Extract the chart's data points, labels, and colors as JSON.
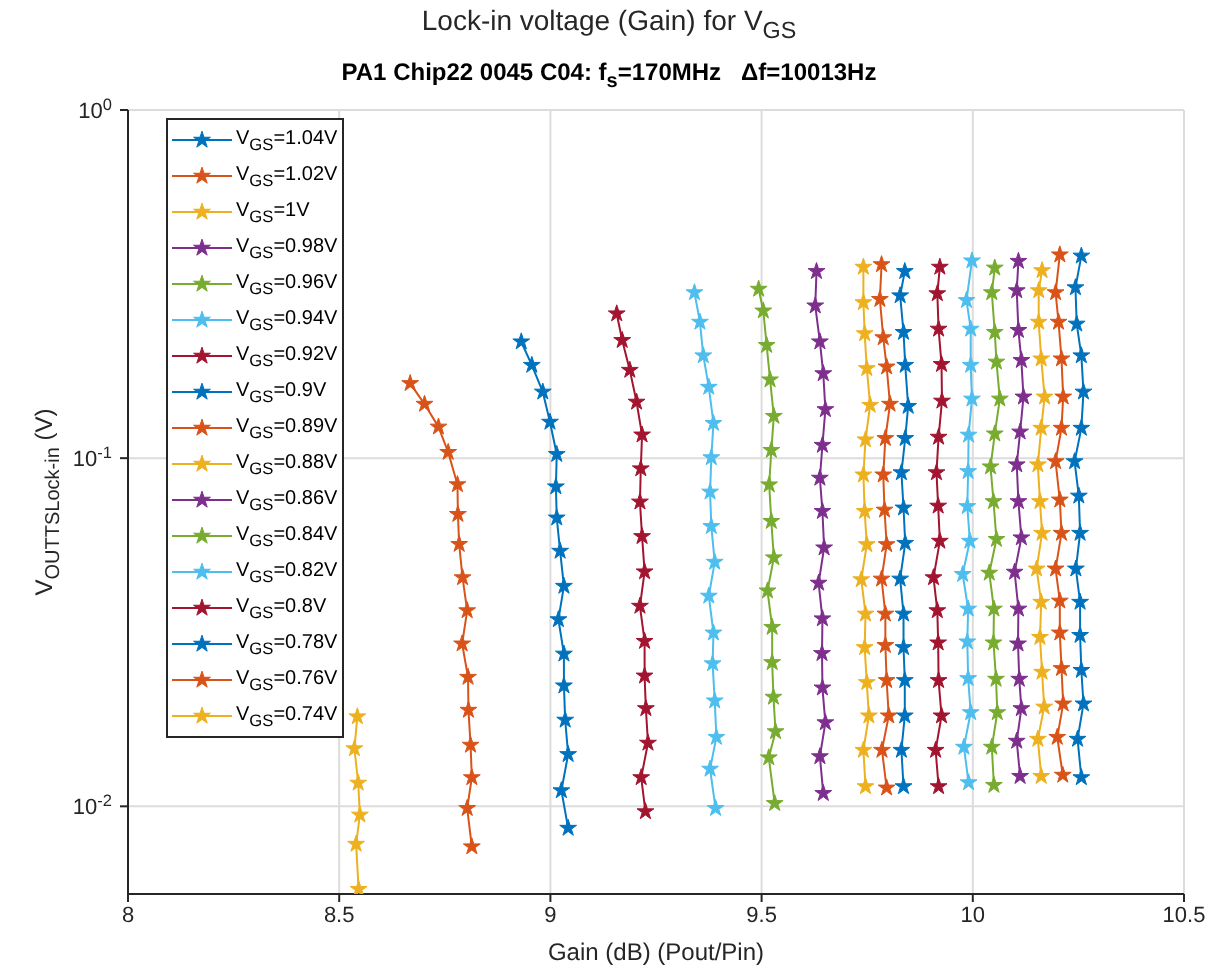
{
  "chart_data": {
    "type": "line",
    "title": "Lock-in voltage (Gain) for V$_{GS}$",
    "subtitle": "PA1 Chip22 0045 C04: f$_{s}$=170MHz   Δf=10013Hz",
    "xlabel": "Gain (dB) (Pout/Pin)",
    "ylabel": "V$_{OUT}$$_{TS}$$_{Lock-in}$ (V)",
    "log": "y",
    "xlim": [
      8,
      10.5
    ],
    "xticks": [
      8,
      8.5,
      9,
      9.5,
      10,
      10.5
    ],
    "ylim": [
      0.0056,
      1
    ],
    "yticks": [
      {
        "value": 0.01,
        "label": "10$^{-2}$"
      },
      {
        "value": 0.1,
        "label": "10$^{-1}$"
      },
      {
        "value": 1,
        "label": "10$^{0}$"
      }
    ],
    "grid": true,
    "legend": "top left",
    "marker": "star",
    "line_style": "solid",
    "series": [
      {
        "name": "V$_{GS}$=1.04V",
        "color": "#0072bd",
        "x": [
          10.257,
          10.243,
          10.246,
          10.257,
          10.262,
          10.257,
          10.241,
          10.251,
          10.254,
          10.244,
          10.254,
          10.254,
          10.257,
          10.262,
          10.248,
          10.257
        ],
        "values": [
          0.381,
          0.309,
          0.243,
          0.197,
          0.155,
          0.122,
          0.0978,
          0.0779,
          0.0609,
          0.0481,
          0.0386,
          0.031,
          0.0246,
          0.0197,
          0.0156,
          0.0121
        ]
      },
      {
        "name": "V$_{GS}$=1.02V",
        "color": "#d95319",
        "x": [
          10.206,
          10.196,
          10.203,
          10.21,
          10.214,
          10.21,
          10.196,
          10.206,
          10.21,
          10.196,
          10.206,
          10.206,
          10.21,
          10.214,
          10.2,
          10.213
        ],
        "values": [
          0.384,
          0.299,
          0.246,
          0.193,
          0.15,
          0.122,
          0.0978,
          0.0759,
          0.0609,
          0.0481,
          0.0389,
          0.0315,
          0.0249,
          0.0197,
          0.0158,
          0.0123
        ]
      },
      {
        "name": "V$_{GS}$=1V",
        "color": "#edb120",
        "x": [
          10.164,
          10.156,
          10.156,
          10.162,
          10.17,
          10.162,
          10.154,
          10.159,
          10.164,
          10.151,
          10.162,
          10.159,
          10.164,
          10.169,
          10.154,
          10.162
        ],
        "values": [
          0.346,
          0.303,
          0.246,
          0.193,
          0.15,
          0.122,
          0.0958,
          0.0751,
          0.0609,
          0.0481,
          0.0386,
          0.0306,
          0.0243,
          0.0193,
          0.0156,
          0.0122
        ]
      },
      {
        "name": "V$_{GS}$=0.98V",
        "color": "#7e2f8e",
        "x": [
          10.108,
          10.104,
          10.108,
          10.115,
          10.12,
          10.112,
          10.104,
          10.108,
          10.115,
          10.099,
          10.108,
          10.107,
          10.11,
          10.115,
          10.104,
          10.112
        ],
        "values": [
          0.368,
          0.303,
          0.233,
          0.191,
          0.15,
          0.119,
          0.0958,
          0.0751,
          0.0591,
          0.0471,
          0.0369,
          0.0293,
          0.0232,
          0.0191,
          0.0154,
          0.0122
        ]
      },
      {
        "name": "V$_{GS}$=0.96V",
        "color": "#77ac30",
        "x": [
          10.052,
          10.045,
          10.052,
          10.056,
          10.064,
          10.052,
          10.042,
          10.049,
          10.056,
          10.039,
          10.05,
          10.049,
          10.055,
          10.058,
          10.045,
          10.05
        ],
        "values": [
          0.352,
          0.299,
          0.23,
          0.189,
          0.148,
          0.1175,
          0.0945,
          0.0751,
          0.0585,
          0.0468,
          0.0369,
          0.0295,
          0.0232,
          0.0186,
          0.0148,
          0.0115
        ]
      },
      {
        "name": "V$_{GS}$=0.94V",
        "color": "#4dbeee",
        "x": [
          9.998,
          9.985,
          9.995,
          9.995,
          9.998,
          9.99,
          9.989,
          9.987,
          9.993,
          9.976,
          9.989,
          9.987,
          9.989,
          9.995,
          9.979,
          9.99
        ],
        "values": [
          0.369,
          0.284,
          0.235,
          0.185,
          0.148,
          0.1166,
          0.0916,
          0.0727,
          0.0578,
          0.0464,
          0.0369,
          0.0297,
          0.0233,
          0.0186,
          0.0148,
          0.0117
        ]
      },
      {
        "name": "V$_{GS}$=0.92V",
        "color": "#a2142f",
        "x": [
          9.922,
          9.916,
          9.919,
          9.926,
          9.927,
          9.919,
          9.914,
          9.918,
          9.922,
          9.907,
          9.916,
          9.918,
          9.919,
          9.926,
          9.912,
          9.919
        ],
        "values": [
          0.354,
          0.297,
          0.235,
          0.186,
          0.146,
          0.115,
          0.0909,
          0.0729,
          0.0578,
          0.0454,
          0.0365,
          0.0295,
          0.023,
          0.0182,
          0.0145,
          0.0114
        ]
      },
      {
        "name": "V$_{GS}$=0.9V",
        "color": "#0072bd",
        "x": [
          9.839,
          9.828,
          9.836,
          9.84,
          9.847,
          9.84,
          9.831,
          9.836,
          9.84,
          9.828,
          9.836,
          9.836,
          9.839,
          9.839,
          9.831,
          9.836
        ],
        "values": [
          0.344,
          0.293,
          0.23,
          0.185,
          0.141,
          0.114,
          0.0909,
          0.072,
          0.057,
          0.045,
          0.0357,
          0.0286,
          0.023,
          0.0182,
          0.0145,
          0.0114
        ]
      },
      {
        "name": "V$_{GS}$=0.89V",
        "color": "#d95319",
        "x": [
          9.784,
          9.78,
          9.788,
          9.796,
          9.804,
          9.793,
          9.788,
          9.791,
          9.796,
          9.784,
          9.793,
          9.793,
          9.796,
          9.801,
          9.785,
          9.796
        ],
        "values": [
          0.36,
          0.286,
          0.222,
          0.183,
          0.143,
          0.114,
          0.0896,
          0.071,
          0.0565,
          0.045,
          0.0357,
          0.029,
          0.023,
          0.0182,
          0.0145,
          0.0113
        ]
      },
      {
        "name": "V$_{GS}$=0.88V",
        "color": "#edb120",
        "x": [
          9.741,
          9.741,
          9.744,
          9.749,
          9.757,
          9.746,
          9.741,
          9.744,
          9.749,
          9.736,
          9.746,
          9.744,
          9.749,
          9.754,
          9.741,
          9.746
        ],
        "values": [
          0.354,
          0.28,
          0.228,
          0.181,
          0.142,
          0.113,
          0.0896,
          0.0704,
          0.0565,
          0.0448,
          0.0357,
          0.0286,
          0.0227,
          0.0182,
          0.0145,
          0.0114
        ]
      },
      {
        "name": "V$_{GS}$=0.86V",
        "color": "#7e2f8e",
        "x": [
          9.63,
          9.627,
          9.638,
          9.646,
          9.651,
          9.644,
          9.638,
          9.644,
          9.648,
          9.635,
          9.644,
          9.643,
          9.644,
          9.651,
          9.638,
          9.646
        ],
        "values": [
          0.344,
          0.274,
          0.216,
          0.175,
          0.138,
          0.109,
          0.0877,
          0.0704,
          0.0553,
          0.0438,
          0.0346,
          0.0275,
          0.0219,
          0.0174,
          0.0139,
          0.0109
        ]
      },
      {
        "name": "V$_{GS}$=0.84V",
        "color": "#77ac30",
        "x": [
          9.493,
          9.504,
          9.512,
          9.52,
          9.529,
          9.523,
          9.518,
          9.523,
          9.529,
          9.514,
          9.525,
          9.525,
          9.528,
          9.533,
          9.517,
          9.531
        ],
        "values": [
          0.306,
          0.265,
          0.211,
          0.168,
          0.132,
          0.1054,
          0.0839,
          0.0659,
          0.0518,
          0.0416,
          0.0327,
          0.0259,
          0.0206,
          0.0164,
          0.0138,
          0.0102
        ]
      },
      {
        "name": "V$_{GS}$=0.82V",
        "color": "#4dbeee",
        "x": [
          9.341,
          9.354,
          9.362,
          9.375,
          9.386,
          9.381,
          9.378,
          9.381,
          9.389,
          9.375,
          9.386,
          9.384,
          9.389,
          9.393,
          9.378,
          9.391
        ],
        "values": [
          0.299,
          0.246,
          0.197,
          0.16,
          0.126,
          0.1004,
          0.08,
          0.0637,
          0.0503,
          0.0402,
          0.0315,
          0.0257,
          0.0201,
          0.0158,
          0.0128,
          0.00987
        ]
      },
      {
        "name": "V$_{GS}$=0.8V",
        "color": "#a2142f",
        "x": [
          9.157,
          9.17,
          9.188,
          9.204,
          9.217,
          9.214,
          9.212,
          9.217,
          9.223,
          9.212,
          9.223,
          9.223,
          9.226,
          9.231,
          9.215,
          9.225
        ],
        "values": [
          0.26,
          0.218,
          0.179,
          0.145,
          0.1167,
          0.0933,
          0.0749,
          0.0596,
          0.0472,
          0.0376,
          0.0298,
          0.0237,
          0.0191,
          0.0152,
          0.0121,
          0.00966
        ]
      },
      {
        "name": "V$_{GS}$=0.78V",
        "color": "#0072bd",
        "x": [
          8.931,
          8.956,
          8.982,
          8.999,
          9.015,
          9.013,
          9.015,
          9.023,
          9.032,
          9.019,
          9.032,
          9.032,
          9.035,
          9.042,
          9.026,
          9.042
        ],
        "values": [
          0.216,
          0.185,
          0.155,
          0.127,
          0.1026,
          0.0828,
          0.0674,
          0.0541,
          0.0429,
          0.0344,
          0.0274,
          0.0222,
          0.0177,
          0.0141,
          0.0111,
          0.00866
        ]
      },
      {
        "name": "V$_{GS}$=0.76V",
        "color": "#d95319",
        "x": [
          8.668,
          8.702,
          8.735,
          8.758,
          8.78,
          8.781,
          8.784,
          8.792,
          8.803,
          8.791,
          8.805,
          8.806,
          8.811,
          8.814,
          8.803,
          8.814
        ],
        "values": [
          0.164,
          0.143,
          0.123,
          0.104,
          0.084,
          0.069,
          0.0566,
          0.0454,
          0.0365,
          0.0293,
          0.0235,
          0.0189,
          0.015,
          0.0121,
          0.00987,
          0.00766
        ]
      },
      {
        "name": "V$_{GS}$=0.74V",
        "color": "#edb120",
        "x": [
          8.543,
          8.536,
          8.545,
          8.549,
          8.54,
          8.546
        ],
        "values": [
          0.0181,
          0.01465,
          0.01167,
          0.00945,
          0.00779,
          0.00578
        ]
      }
    ]
  }
}
